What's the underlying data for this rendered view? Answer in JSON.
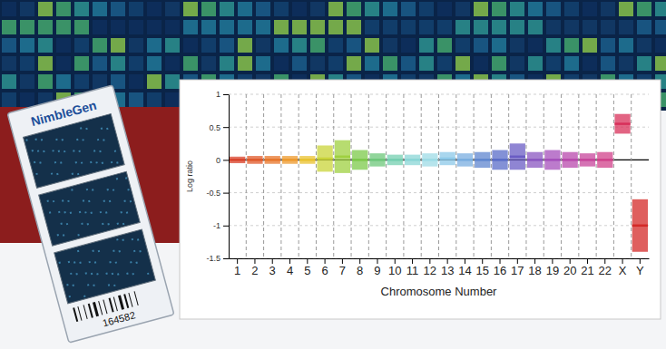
{
  "chart_data": {
    "type": "range",
    "x_label": "Chromosome Number",
    "y_label": "Log ratio",
    "categories": [
      "1",
      "2",
      "3",
      "4",
      "5",
      "6",
      "7",
      "8",
      "9",
      "10",
      "11",
      "12",
      "13",
      "14",
      "15",
      "16",
      "17",
      "18",
      "19",
      "20",
      "21",
      "22",
      "X",
      "Y"
    ],
    "values": [
      0,
      0,
      0,
      0,
      0,
      0.02,
      0.05,
      0,
      0,
      0,
      0,
      0,
      0.02,
      0,
      0,
      0,
      0.05,
      0,
      0,
      0,
      0,
      0,
      0.55,
      -1.0
    ],
    "spread": [
      0.05,
      0.06,
      0.06,
      0.06,
      0.06,
      0.2,
      0.25,
      0.15,
      0.1,
      0.08,
      0.08,
      0.1,
      0.1,
      0.1,
      0.12,
      0.15,
      0.2,
      0.12,
      0.15,
      0.12,
      0.1,
      0.12,
      0.15,
      0.4
    ],
    "colors": [
      "#d9432b",
      "#e05a2a",
      "#e8762a",
      "#ee9a2c",
      "#e9c22f",
      "#c9d43a",
      "#9fd040",
      "#7cc94a",
      "#6cc77a",
      "#74cfb0",
      "#8ad6d6",
      "#9edbe6",
      "#8cc8e8",
      "#79aee0",
      "#5f86cf",
      "#5a6cc8",
      "#6a5cc4",
      "#8a55c0",
      "#a54fbb",
      "#b848ac",
      "#c7449b",
      "#d0408a",
      "#d8305a",
      "#d42a28"
    ],
    "ylim": [
      -1.5,
      1
    ],
    "yticks": [
      -1.5,
      -1,
      -0.5,
      0,
      0.5,
      1
    ],
    "grid": true
  },
  "slide": {
    "logo": "NimbleGen",
    "barcode": "164582"
  }
}
